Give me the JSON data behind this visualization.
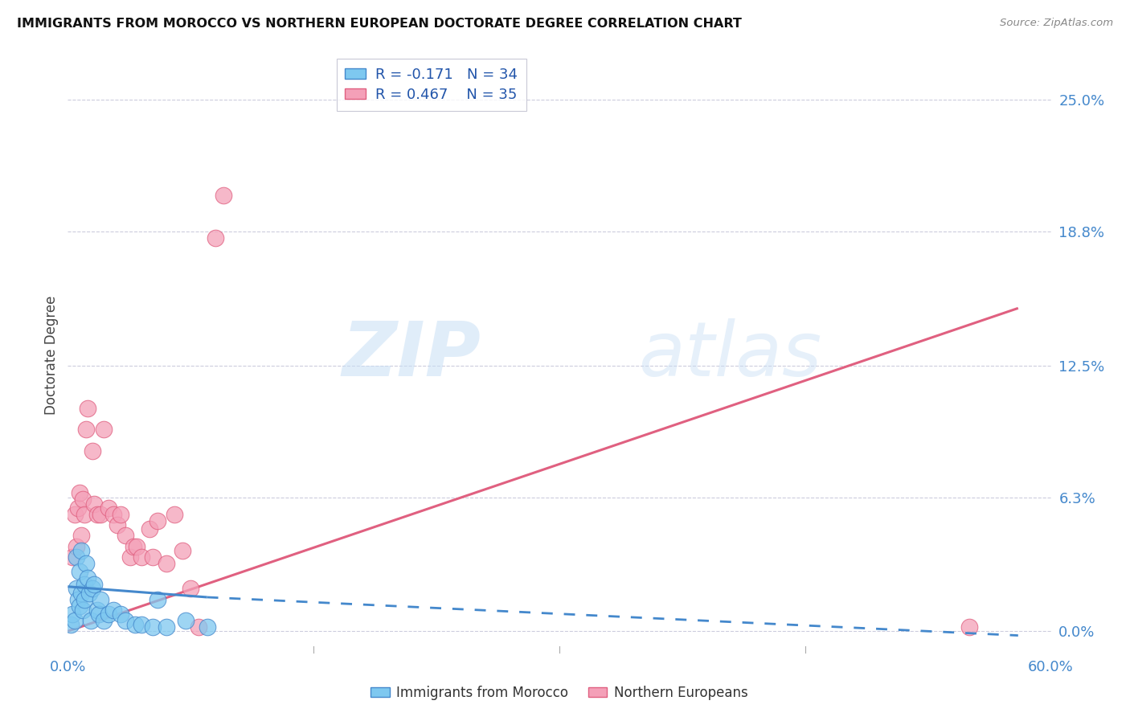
{
  "title": "IMMIGRANTS FROM MOROCCO VS NORTHERN EUROPEAN DOCTORATE DEGREE CORRELATION CHART",
  "source": "Source: ZipAtlas.com",
  "ylabel": "Doctorate Degree",
  "ytick_values": [
    0.0,
    6.3,
    12.5,
    18.8,
    25.0
  ],
  "xlim": [
    0.0,
    60.0
  ],
  "ylim": [
    -1.0,
    27.0
  ],
  "watermark_text": "ZIP",
  "watermark_text2": "atlas",
  "color_blue": "#7ec8f0",
  "color_pink": "#f4a0b8",
  "color_blue_line": "#4488cc",
  "color_pink_line": "#e06080",
  "morocco_x": [
    0.2,
    0.3,
    0.4,
    0.5,
    0.5,
    0.6,
    0.7,
    0.7,
    0.8,
    0.8,
    0.9,
    1.0,
    1.0,
    1.1,
    1.2,
    1.3,
    1.4,
    1.5,
    1.6,
    1.8,
    1.9,
    2.0,
    2.2,
    2.5,
    2.8,
    3.2,
    3.5,
    4.1,
    4.5,
    5.2,
    5.5,
    6.0,
    7.2,
    8.5
  ],
  "morocco_y": [
    0.3,
    0.8,
    0.5,
    2.0,
    3.5,
    1.5,
    1.2,
    2.8,
    1.8,
    3.8,
    1.0,
    2.2,
    1.5,
    3.2,
    2.5,
    1.8,
    0.5,
    2.0,
    2.2,
    1.0,
    0.8,
    1.5,
    0.5,
    0.8,
    1.0,
    0.8,
    0.5,
    0.3,
    0.3,
    0.2,
    1.5,
    0.2,
    0.5,
    0.2
  ],
  "northern_x": [
    0.3,
    0.4,
    0.5,
    0.6,
    0.7,
    0.8,
    0.9,
    1.0,
    1.1,
    1.2,
    1.5,
    1.6,
    1.8,
    2.0,
    2.2,
    2.5,
    2.8,
    3.0,
    3.2,
    3.5,
    3.8,
    4.0,
    4.2,
    4.5,
    5.0,
    5.2,
    5.5,
    6.0,
    6.5,
    7.0,
    7.5,
    8.0,
    9.0,
    9.5,
    55.0
  ],
  "northern_y": [
    3.5,
    5.5,
    4.0,
    5.8,
    6.5,
    4.5,
    6.2,
    5.5,
    9.5,
    10.5,
    8.5,
    6.0,
    5.5,
    5.5,
    9.5,
    5.8,
    5.5,
    5.0,
    5.5,
    4.5,
    3.5,
    4.0,
    4.0,
    3.5,
    4.8,
    3.5,
    5.2,
    3.2,
    5.5,
    3.8,
    2.0,
    0.2,
    18.5,
    20.5,
    0.2
  ],
  "morocco_line_x0": 0.0,
  "morocco_line_y0": 2.1,
  "morocco_line_x1": 8.5,
  "morocco_line_y1": 1.6,
  "morocco_dash_x0": 8.5,
  "morocco_dash_y0": 1.6,
  "morocco_dash_x1": 58.0,
  "morocco_dash_y1": -0.2,
  "northern_line_x0": 0.0,
  "northern_line_y0": 0.0,
  "northern_line_x1": 58.0,
  "northern_line_y1": 15.2
}
